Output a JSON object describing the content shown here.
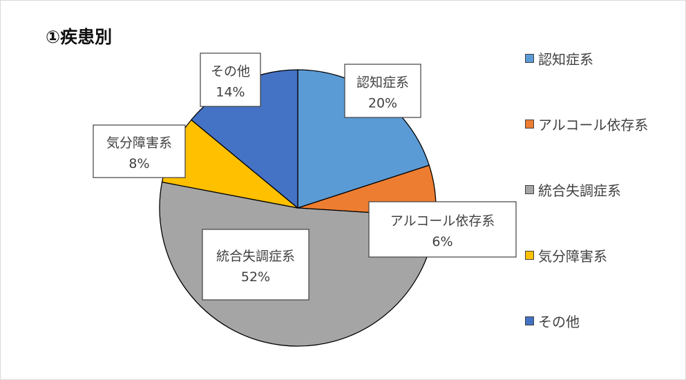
{
  "chart_data": {
    "type": "pie",
    "title": "①疾患別",
    "categories": [
      "認知症系",
      "アルコール依存系",
      "統合失調症系",
      "気分障害系",
      "その他"
    ],
    "values": [
      20,
      6,
      52,
      8,
      14
    ],
    "value_labels": [
      "20%",
      "6%",
      "52%",
      "8%",
      "14%"
    ],
    "colors": [
      "#5B9BD5",
      "#ED7D31",
      "#A5A5A5",
      "#FFC000",
      "#4472C4"
    ],
    "legend_position": "right"
  }
}
